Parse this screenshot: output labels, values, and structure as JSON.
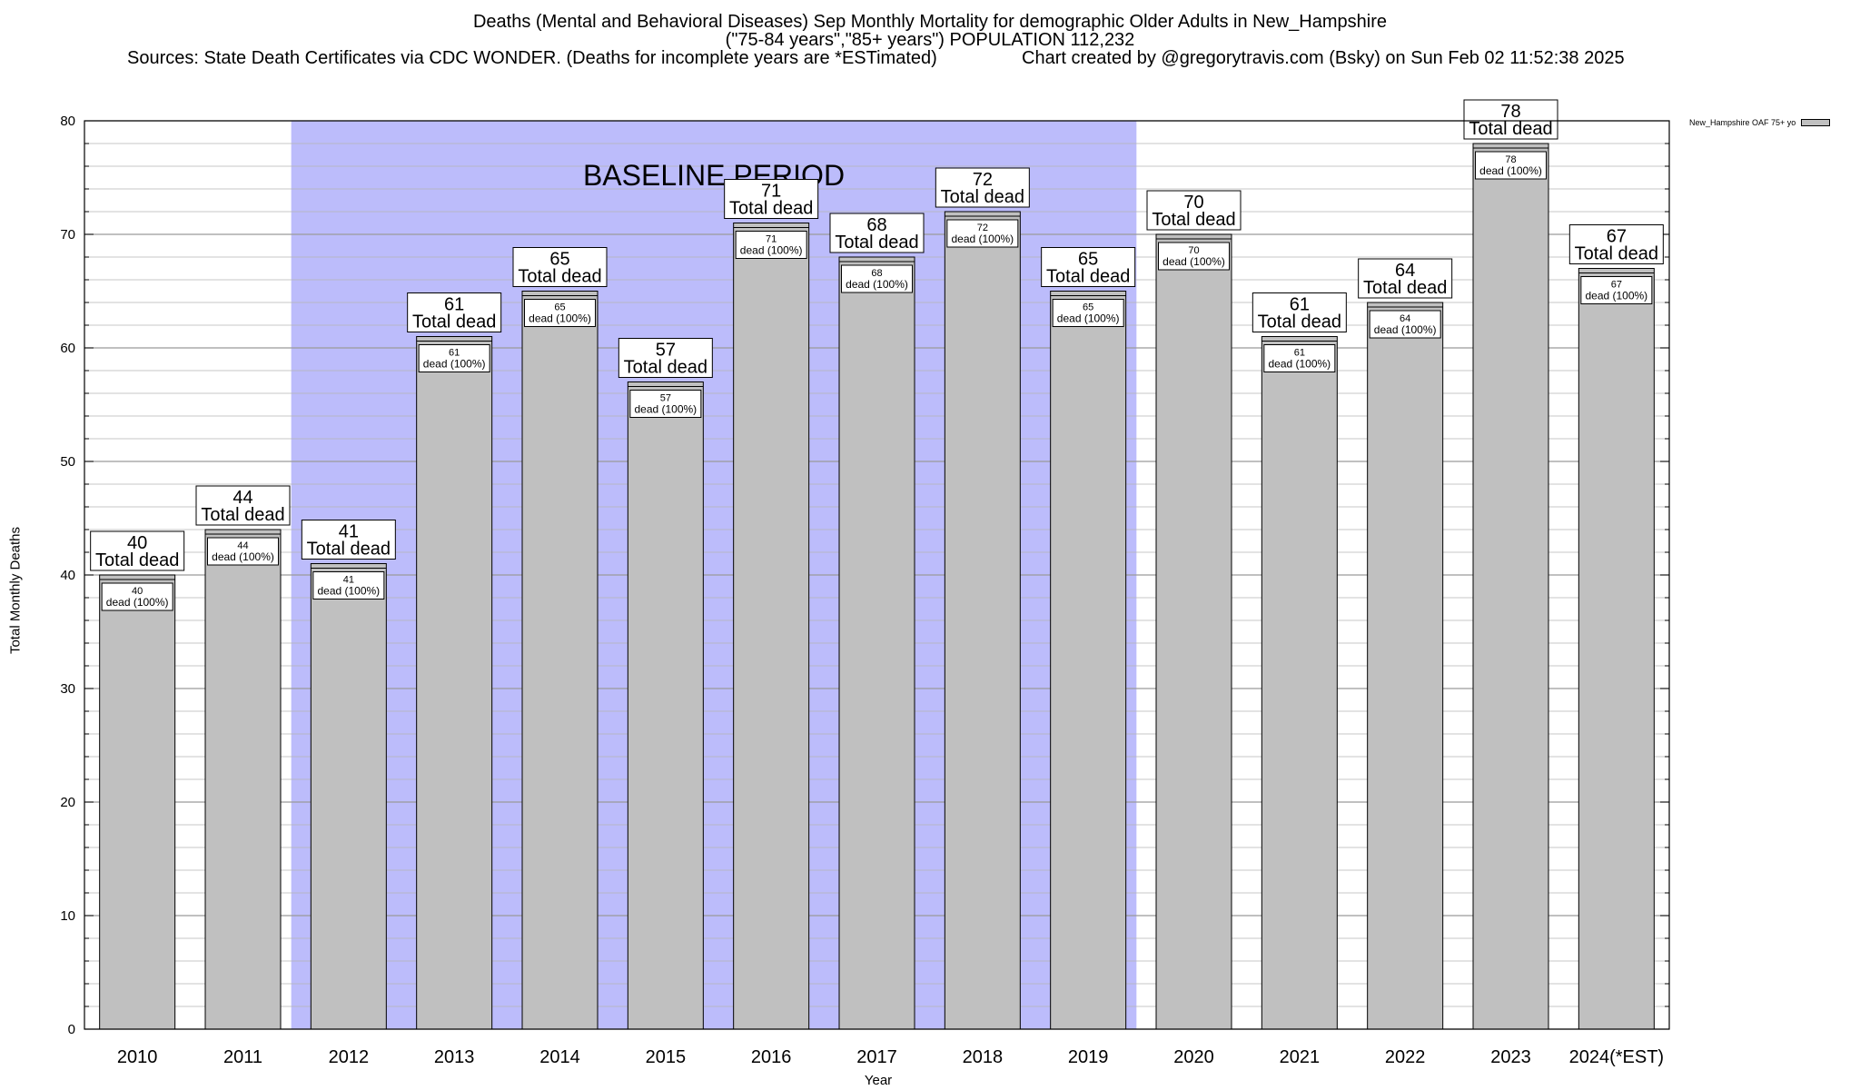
{
  "chart_data": {
    "type": "bar",
    "title": "Deaths (Mental and Behavioral Diseases) Sep Monthly Mortality for demographic Older Adults in New_Hampshire",
    "subtitle": "(\"75-84 years\",\"85+ years\") POPULATION 112,232",
    "sources": "Sources: State Death Certificates via CDC WONDER. (Deaths for incomplete years are *ESTimated)",
    "credit": "Chart created by @gregorytravis.com (Bsky) on Sun Feb 02 11:52:38 2025",
    "xlabel": "Year",
    "ylabel": "Total Monthly Deaths",
    "ylim": [
      0,
      80
    ],
    "yticks": [
      "0",
      "10",
      "20",
      "30",
      "40",
      "50",
      "60",
      "70",
      "80"
    ],
    "categories": [
      "2010",
      "2011",
      "2012",
      "2013",
      "2014",
      "2015",
      "2016",
      "2017",
      "2018",
      "2019",
      "2020",
      "2021",
      "2022",
      "2023",
      "2024(*EST)"
    ],
    "series": [
      {
        "name": "New_Hampshire OAF 75+ yo",
        "values": [
          40,
          44,
          41,
          61,
          65,
          57,
          71,
          68,
          72,
          65,
          70,
          61,
          64,
          78,
          67
        ]
      }
    ],
    "total_label": "Total dead",
    "inner_label": "dead (100%)",
    "baseline": {
      "label": "BASELINE PERIOD",
      "from": "2012",
      "to": "2019"
    },
    "grid": true,
    "legend_position": "top-right",
    "colors": {
      "bar": "#c0c0c0",
      "baseline": "#bcbcfb",
      "grid": "#b4b4b4"
    }
  }
}
